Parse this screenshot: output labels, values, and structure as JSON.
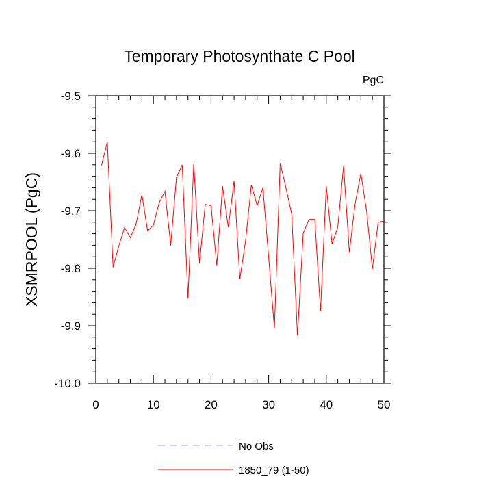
{
  "chart_data": {
    "type": "line",
    "title": "Temporary Photosynthate C Pool",
    "units": "PgC",
    "xlabel": "",
    "ylabel": "XSMRPOOL  (PgC)",
    "xlim": [
      0,
      50
    ],
    "ylim": [
      -10.0,
      -9.5
    ],
    "xticks": [
      0,
      10,
      20,
      30,
      40,
      50
    ],
    "xtick_labels": [
      "0",
      "10",
      "20",
      "30",
      "40",
      "50"
    ],
    "yticks": [
      -9.5,
      -9.6,
      -9.7,
      -9.8,
      -9.9,
      -10.0
    ],
    "ytick_labels": [
      "-9.5",
      "-9.6",
      "-9.7",
      "-9.8",
      "-9.9",
      "-10.0"
    ],
    "grid": false,
    "legend_position": "bottom",
    "series": [
      {
        "name": "No Obs",
        "color": "#9a9aff",
        "dash": true,
        "x": [],
        "values": []
      },
      {
        "name": "1850_79 (1-50)",
        "color": "#ff0000",
        "dash": false,
        "x": [
          1,
          2,
          3,
          4,
          5,
          6,
          7,
          8,
          9,
          10,
          11,
          12,
          13,
          14,
          15,
          16,
          17,
          18,
          19,
          20,
          21,
          22,
          23,
          24,
          25,
          26,
          27,
          28,
          29,
          30,
          31,
          32,
          33,
          34,
          35,
          36,
          37,
          38,
          39,
          40,
          41,
          42,
          43,
          44,
          45,
          46,
          47,
          48,
          49,
          50
        ],
        "values": [
          -9.621,
          -9.58,
          -9.798,
          -9.761,
          -9.729,
          -9.747,
          -9.723,
          -9.672,
          -9.735,
          -9.725,
          -9.686,
          -9.666,
          -9.76,
          -9.642,
          -9.62,
          -9.852,
          -9.618,
          -9.791,
          -9.689,
          -9.691,
          -9.795,
          -9.657,
          -9.729,
          -9.648,
          -9.819,
          -9.752,
          -9.655,
          -9.691,
          -9.66,
          -9.781,
          -9.905,
          -9.617,
          -9.66,
          -9.706,
          -9.917,
          -9.739,
          -9.715,
          -9.715,
          -9.874,
          -9.657,
          -9.758,
          -9.728,
          -9.622,
          -9.772,
          -9.688,
          -9.635,
          -9.701,
          -9.801,
          -9.72,
          -9.718
        ]
      }
    ]
  }
}
